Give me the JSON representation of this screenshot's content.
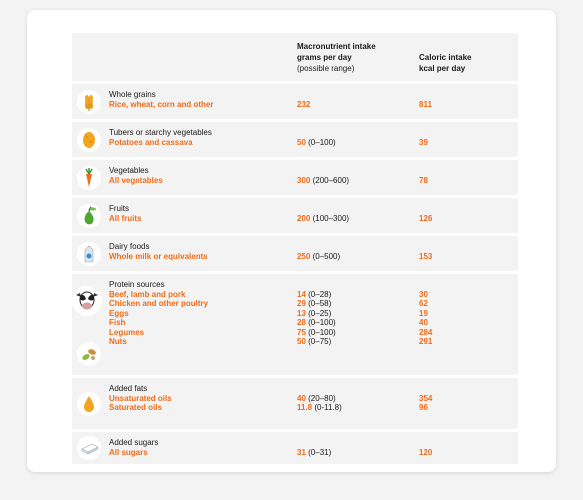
{
  "header": {
    "col2": [
      "Macronutrient intake",
      "grams per day",
      "(possible range)"
    ],
    "col3": [
      "Caloric intake",
      "kcal per day"
    ]
  },
  "groups": [
    {
      "category": "Whole grains",
      "icon": "wheat-icon",
      "items": [
        {
          "name": "Rice, wheat, corn and other",
          "grams": "232",
          "range": "",
          "kcal": "811"
        }
      ]
    },
    {
      "category": "Tubers or starchy vegetables",
      "icon": "potato-icon",
      "items": [
        {
          "name": "Potatoes and cassava",
          "grams": "50",
          "range": " (0–100)",
          "kcal": "39"
        }
      ]
    },
    {
      "category": "Vegetables",
      "icon": "carrot-icon",
      "items": [
        {
          "name": "All vegetables",
          "grams": "300",
          "range": " (200–600)",
          "kcal": "78"
        }
      ]
    },
    {
      "category": "Fruits",
      "icon": "pear-icon",
      "items": [
        {
          "name": "All fruits",
          "grams": "200",
          "range": " (100–300)",
          "kcal": "126"
        }
      ]
    },
    {
      "category": "Dairy foods",
      "icon": "milk-carton-icon",
      "items": [
        {
          "name": "Whole milk or equivalents",
          "grams": "250",
          "range": " (0–500)",
          "kcal": "153"
        }
      ]
    },
    {
      "category": "Protein sources",
      "icon": "cow-icon",
      "icon2": "legumes-icon",
      "items": [
        {
          "name": "Beef, lamb and pork",
          "grams": "14",
          "range": " (0–28)",
          "kcal": "30"
        },
        {
          "name": "Chicken and other poultry",
          "grams": "29",
          "range": " (0–58)",
          "kcal": "62"
        },
        {
          "name": "Eggs",
          "grams": "13",
          "range": " (0–25)",
          "kcal": "19"
        },
        {
          "name": "Fish",
          "grams": "28",
          "range": " (0–100)",
          "kcal": "40"
        },
        {
          "name": "Legumes",
          "grams": "75",
          "range": " (0–100)",
          "kcal": "284"
        },
        {
          "name": "Nuts",
          "grams": "50",
          "range": " (0–75)",
          "kcal": "291"
        }
      ]
    },
    {
      "category": "Added fats",
      "icon": "oil-drop-icon",
      "items": [
        {
          "name": "Unsaturated oils",
          "grams": "40",
          "range": " (20–80)",
          "kcal": "354"
        },
        {
          "name": "Saturated oils",
          "grams": "11.8",
          "range": " (0-11.8)",
          "kcal": "96"
        }
      ]
    },
    {
      "category": "Added sugars",
      "icon": "sugar-cube-icon",
      "items": [
        {
          "name": "All sugars",
          "grams": "31",
          "range": " (0–31)",
          "kcal": "120"
        }
      ]
    }
  ],
  "colors": {
    "accent": "#ee6c1a",
    "row_bg": "#f3f3f3"
  }
}
